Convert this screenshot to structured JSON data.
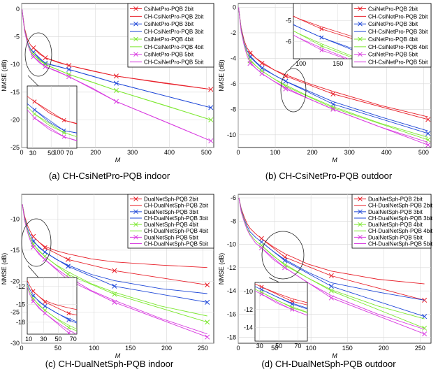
{
  "colors": {
    "red": "#e8202a",
    "blue": "#1f48d8",
    "green": "#7ee832",
    "magenta": "#d83ce0",
    "axis": "#000000",
    "grid": "#d8d8d8"
  },
  "chart_data": [
    {
      "type": "line",
      "caption": "(a) CH-CsiNetPro-PQB indoor",
      "xlabel": "M",
      "ylabel": "NMSE (dB)",
      "xlim": [
        0,
        520
      ],
      "ylim": [
        -25,
        1
      ],
      "xticks": [
        0,
        100,
        200,
        300,
        400,
        500
      ],
      "yticks": [
        0,
        -5,
        -10,
        -15,
        -20,
        -25
      ],
      "markers_x": [
        32,
        64,
        128,
        256,
        512
      ],
      "series": [
        {
          "name": "CsiNetPro-PQB 2bit",
          "color": "red",
          "marker": true,
          "x": [
            32,
            64,
            128,
            256,
            512
          ],
          "y": [
            -7.0,
            -8.8,
            -10.2,
            -12.1,
            -14.5
          ]
        },
        {
          "name": "CH-CsiNetPro-PQB 2bit",
          "color": "red",
          "marker": false,
          "x": [
            1,
            8,
            16,
            24,
            32,
            48,
            64,
            96,
            128,
            192,
            256,
            384,
            512
          ],
          "y": [
            0,
            -3.5,
            -5.5,
            -6.5,
            -7.0,
            -8.1,
            -8.8,
            -9.6,
            -10.2,
            -11.2,
            -12.1,
            -13.4,
            -14.5
          ]
        },
        {
          "name": "CsiNetPro-PQB 3bit",
          "color": "blue",
          "marker": true,
          "x": [
            32,
            64,
            128,
            256,
            512
          ],
          "y": [
            -7.8,
            -9.8,
            -10.9,
            -13.4,
            -17.8
          ]
        },
        {
          "name": "CH-CsiNetPro-PQB 3bit",
          "color": "blue",
          "marker": false,
          "x": [
            1,
            8,
            16,
            24,
            32,
            48,
            64,
            96,
            128,
            192,
            256,
            384,
            512
          ],
          "y": [
            0,
            -3.8,
            -6.0,
            -7.2,
            -7.8,
            -9.0,
            -9.8,
            -10.3,
            -10.9,
            -12.1,
            -13.4,
            -15.6,
            -17.8
          ]
        },
        {
          "name": "CsiNetPro-PQB 4bit",
          "color": "green",
          "marker": true,
          "x": [
            32,
            64,
            128,
            256,
            512
          ],
          "y": [
            -8.2,
            -10.0,
            -11.8,
            -14.7,
            -20.0
          ]
        },
        {
          "name": "CH-CsiNetPro-PQB 4bit",
          "color": "green",
          "marker": false,
          "x": [
            1,
            8,
            16,
            24,
            32,
            48,
            64,
            96,
            128,
            192,
            256,
            384,
            512
          ],
          "y": [
            0,
            -3.9,
            -6.2,
            -7.5,
            -8.2,
            -9.3,
            -10.0,
            -10.9,
            -11.8,
            -13.2,
            -14.7,
            -17.3,
            -20.0
          ]
        },
        {
          "name": "CsiNetPro-PQB 5bit",
          "color": "magenta",
          "marker": true,
          "x": [
            32,
            64,
            128,
            256,
            512
          ],
          "y": [
            -8.6,
            -10.4,
            -12.2,
            -16.7,
            -23.8
          ]
        },
        {
          "name": "CH-CsiNetPro-PQB 5bit",
          "color": "magenta",
          "marker": false,
          "x": [
            1,
            8,
            16,
            24,
            32,
            48,
            64,
            96,
            128,
            192,
            256,
            384,
            512
          ],
          "y": [
            0,
            -4.0,
            -6.4,
            -7.8,
            -8.6,
            -9.7,
            -10.4,
            -11.2,
            -12.2,
            -14.3,
            -16.7,
            -20.2,
            -23.8
          ]
        }
      ],
      "inset": {
        "xticks": [
          30,
          50,
          70
        ],
        "yticks": []
      }
    },
    {
      "type": "line",
      "caption": "(b) CH-CsiNetPro-PQB outdoor",
      "xlabel": "M",
      "ylabel": "NMSE (dB)",
      "xlim": [
        0,
        520
      ],
      "ylim": [
        -11,
        0.3
      ],
      "xticks": [
        0,
        100,
        200,
        300,
        400,
        500
      ],
      "yticks": [
        0,
        -2,
        -4,
        -6,
        -8,
        -10
      ],
      "markers_x": [
        32,
        64,
        128,
        256,
        512
      ],
      "series": [
        {
          "name": "CsiNetPro-PQB 2bit",
          "color": "red",
          "marker": true,
          "x": [
            32,
            64,
            128,
            256,
            512
          ],
          "y": [
            -3.6,
            -4.4,
            -5.4,
            -6.8,
            -8.8
          ]
        },
        {
          "name": "CH-CsiNetPro-PQB 2bit",
          "color": "red",
          "marker": false,
          "x": [
            1,
            8,
            16,
            24,
            32,
            48,
            64,
            96,
            128,
            192,
            256,
            384,
            512
          ],
          "y": [
            0,
            -1.6,
            -2.6,
            -3.2,
            -3.5,
            -4.0,
            -4.3,
            -4.9,
            -5.3,
            -6.0,
            -6.6,
            -7.7,
            -8.6
          ]
        },
        {
          "name": "CsiNetPro-PQB 3bit",
          "color": "blue",
          "marker": true,
          "x": [
            32,
            64,
            128,
            256,
            512
          ],
          "y": [
            -3.9,
            -4.8,
            -5.8,
            -7.6,
            -9.9
          ]
        },
        {
          "name": "CH-CsiNetPro-PQB 3bit",
          "color": "blue",
          "marker": false,
          "x": [
            1,
            8,
            16,
            24,
            32,
            48,
            64,
            96,
            128,
            192,
            256,
            384,
            512
          ],
          "y": [
            0,
            -1.7,
            -2.8,
            -3.4,
            -3.8,
            -4.3,
            -4.7,
            -5.3,
            -5.8,
            -6.6,
            -7.4,
            -8.6,
            -9.7
          ]
        },
        {
          "name": "CsiNetPro-PQB 4bit",
          "color": "green",
          "marker": true,
          "x": [
            32,
            64,
            128,
            256,
            512
          ],
          "y": [
            -4.2,
            -5.0,
            -6.2,
            -7.9,
            -10.4
          ]
        },
        {
          "name": "CH-CsiNetPro-PQB 4bit",
          "color": "green",
          "marker": false,
          "x": [
            1,
            8,
            16,
            24,
            32,
            48,
            64,
            96,
            128,
            192,
            256,
            384,
            512
          ],
          "y": [
            0,
            -1.8,
            -2.9,
            -3.6,
            -4.1,
            -4.6,
            -5.0,
            -5.6,
            -6.1,
            -7.0,
            -7.8,
            -9.1,
            -10.2
          ]
        },
        {
          "name": "CsiNetPro-PQB 5bit",
          "color": "magenta",
          "marker": true,
          "x": [
            32,
            64,
            128,
            256,
            512
          ],
          "y": [
            -4.4,
            -5.2,
            -6.4,
            -8.0,
            -10.8
          ]
        },
        {
          "name": "CH-CsiNetPro-PQB 5bit",
          "color": "magenta",
          "marker": false,
          "x": [
            1,
            8,
            16,
            24,
            32,
            48,
            64,
            96,
            128,
            192,
            256,
            384,
            512
          ],
          "y": [
            0,
            -1.9,
            -3.0,
            -3.8,
            -4.3,
            -4.8,
            -5.2,
            -5.8,
            -6.3,
            -7.2,
            -8.0,
            -9.4,
            -10.6
          ]
        }
      ],
      "inset": {
        "xticks": [
          100,
          150
        ],
        "yticks": [
          -5,
          -6
        ]
      }
    },
    {
      "type": "line",
      "caption": "(c) CH-DualNetSph-PQB indoor",
      "xlabel": "M",
      "ylabel": "NMSE (dB)",
      "xlim": [
        0,
        265
      ],
      "ylim": [
        -30,
        -6
      ],
      "xticks": [
        0,
        50,
        100,
        150,
        200,
        250
      ],
      "yticks": [
        -10,
        -15,
        -20,
        -25,
        -30
      ],
      "markers_x": [
        16,
        32,
        64,
        128,
        256
      ],
      "series": [
        {
          "name": "DualNetSph-PQB 2bit",
          "color": "red",
          "marker": true,
          "x": [
            16,
            32,
            64,
            128,
            256
          ],
          "y": [
            -12.8,
            -14.6,
            -16.5,
            -18.3,
            -20.6
          ]
        },
        {
          "name": "CH-DualNetSph-PQB 2bit",
          "color": "red",
          "marker": false,
          "x": [
            1,
            4,
            8,
            12,
            16,
            24,
            32,
            48,
            64,
            96,
            128,
            192,
            256
          ],
          "y": [
            -7.6,
            -9.5,
            -11.0,
            -12.0,
            -12.8,
            -13.7,
            -14.4,
            -15.1,
            -15.6,
            -16.4,
            -16.9,
            -17.4,
            -17.8
          ]
        },
        {
          "name": "DualNetSph-PQB 3bit",
          "color": "blue",
          "marker": true,
          "x": [
            16,
            32,
            64,
            128,
            256
          ],
          "y": [
            -13.6,
            -15.3,
            -17.6,
            -20.8,
            -23.4
          ]
        },
        {
          "name": "CH-DualNetSph-PQB 3bit",
          "color": "blue",
          "marker": false,
          "x": [
            1,
            4,
            8,
            12,
            16,
            24,
            32,
            48,
            64,
            96,
            128,
            192,
            256
          ],
          "y": [
            -7.6,
            -9.8,
            -11.5,
            -12.6,
            -13.4,
            -14.6,
            -15.3,
            -16.5,
            -17.4,
            -18.9,
            -19.9,
            -21.2,
            -22.0
          ]
        },
        {
          "name": "DualNetSph-PQB 4bit",
          "color": "green",
          "marker": true,
          "x": [
            16,
            32,
            64,
            128,
            256
          ],
          "y": [
            -14.1,
            -16.0,
            -18.9,
            -22.1,
            -26.6
          ]
        },
        {
          "name": "CH-DualNetSph-PQB 4bit",
          "color": "green",
          "marker": false,
          "x": [
            1,
            4,
            8,
            12,
            16,
            24,
            32,
            48,
            64,
            96,
            128,
            192,
            256
          ],
          "y": [
            -7.6,
            -10.0,
            -11.8,
            -13.1,
            -14.0,
            -15.2,
            -16.0,
            -17.4,
            -18.5,
            -20.4,
            -21.8,
            -24.0,
            -25.6
          ]
        },
        {
          "name": "DualNetSph-PQB 5bit",
          "color": "magenta",
          "marker": true,
          "x": [
            16,
            32,
            64,
            128,
            256
          ],
          "y": [
            -14.5,
            -16.5,
            -19.8,
            -23.4,
            -29.0
          ]
        },
        {
          "name": "CH-DualNetSph-PQB 5bit",
          "color": "magenta",
          "marker": false,
          "x": [
            1,
            4,
            8,
            12,
            16,
            24,
            32,
            48,
            64,
            96,
            128,
            192,
            256
          ],
          "y": [
            -7.6,
            -10.2,
            -12.1,
            -13.5,
            -14.4,
            -15.7,
            -16.5,
            -18.0,
            -19.3,
            -21.5,
            -23.1,
            -26.0,
            -28.5
          ]
        }
      ],
      "inset": {
        "xticks": [
          10,
          30,
          50,
          70
        ],
        "yticks": [
          -12,
          -15,
          -18
        ]
      }
    },
    {
      "type": "line",
      "caption": "(d) CH-DualNetSph-PQB outdoor",
      "xlabel": "M",
      "ylabel": "NMSE (dB)",
      "xlim": [
        0,
        265
      ],
      "ylim": [
        -18.5,
        -5.7
      ],
      "xticks": [
        0,
        50,
        100,
        150,
        200,
        250
      ],
      "yticks": [
        -6,
        -8,
        -10,
        -12,
        -14,
        -16,
        -18
      ],
      "markers_x": [
        32,
        64,
        128,
        256
      ],
      "series": [
        {
          "name": "DualNetSph-PQB 2bit",
          "color": "red",
          "marker": true,
          "x": [
            32,
            64,
            128,
            256
          ],
          "y": [
            -9.5,
            -11.1,
            -12.7,
            -14.8
          ]
        },
        {
          "name": "CH-DualNetSph-PQB 2bit",
          "color": "red",
          "marker": false,
          "x": [
            1,
            4,
            8,
            12,
            16,
            24,
            32,
            48,
            64,
            96,
            128,
            192,
            256
          ],
          "y": [
            -6.0,
            -6.9,
            -7.6,
            -8.2,
            -8.6,
            -9.1,
            -9.5,
            -10.2,
            -10.8,
            -11.7,
            -12.3,
            -13.0,
            -13.4
          ]
        },
        {
          "name": "DualNetSph-PQB 3bit",
          "color": "blue",
          "marker": true,
          "x": [
            32,
            64,
            128,
            256
          ],
          "y": [
            -9.8,
            -11.4,
            -13.6,
            -16.2
          ]
        },
        {
          "name": "CH-DualNetSph-PQB 3bit",
          "color": "blue",
          "marker": false,
          "x": [
            1,
            4,
            8,
            12,
            16,
            24,
            32,
            48,
            64,
            96,
            128,
            192,
            256
          ],
          "y": [
            -6.0,
            -7.0,
            -7.8,
            -8.4,
            -8.9,
            -9.4,
            -9.8,
            -10.6,
            -11.3,
            -12.4,
            -13.3,
            -14.1,
            -14.8
          ]
        },
        {
          "name": "DualNetSph-PQB 4bit",
          "color": "green",
          "marker": true,
          "x": [
            32,
            64,
            128,
            256
          ],
          "y": [
            -10.1,
            -11.8,
            -14.0,
            -17.2
          ]
        },
        {
          "name": "CH-DualNetSph-PQB 4bit",
          "color": "green",
          "marker": false,
          "x": [
            1,
            4,
            8,
            12,
            16,
            24,
            32,
            48,
            64,
            96,
            128,
            192,
            256
          ],
          "y": [
            -6.0,
            -7.1,
            -7.9,
            -8.6,
            -9.1,
            -9.7,
            -10.1,
            -11.0,
            -11.7,
            -12.9,
            -13.9,
            -15.3,
            -16.4
          ]
        },
        {
          "name": "DualNetSph-PQB 5bit",
          "color": "magenta",
          "marker": true,
          "x": [
            32,
            64,
            128,
            256
          ],
          "y": [
            -10.3,
            -12.0,
            -14.6,
            -17.7
          ]
        },
        {
          "name": "CH-DualNetSph-PQB 5bit",
          "color": "magenta",
          "marker": false,
          "x": [
            1,
            4,
            8,
            12,
            16,
            24,
            32,
            48,
            64,
            96,
            128,
            192,
            256
          ],
          "y": [
            -6.0,
            -7.2,
            -8.0,
            -8.7,
            -9.2,
            -9.9,
            -10.3,
            -11.3,
            -12.0,
            -13.3,
            -14.4,
            -16.0,
            -17.3
          ]
        }
      ],
      "inset": {
        "xticks": [
          30,
          50,
          70
        ],
        "yticks": [
          -10,
          -12,
          -14
        ]
      }
    }
  ]
}
